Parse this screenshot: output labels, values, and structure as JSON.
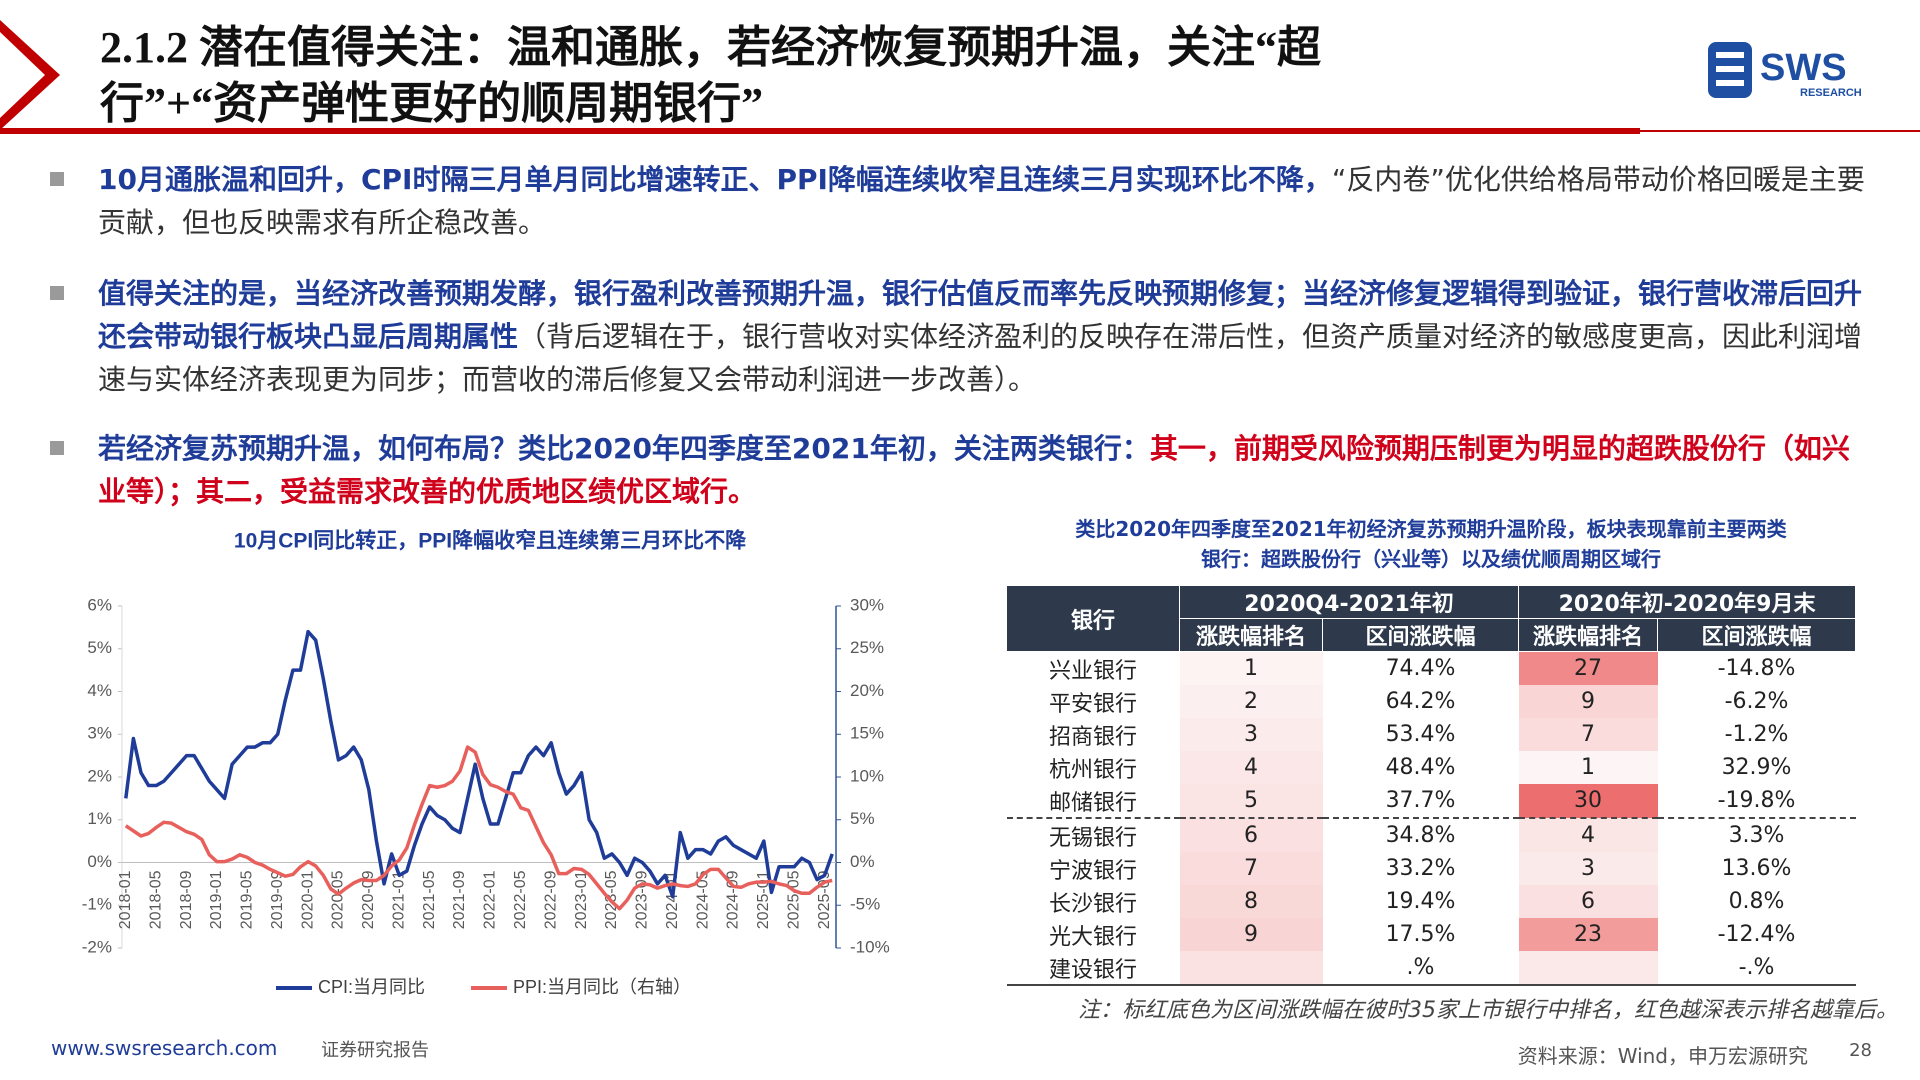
{
  "header": {
    "title_lines": [
      "2.1.2 潜在值得关注：温和通胀，若经济恢复预期升温，关注“超",
      "行”+“资产弹性更好的顺周期银行”"
    ],
    "logo": "SWS",
    "logo_sub": "RESEARCH"
  },
  "bullets": [
    [
      "10月通胀温和回升，CPI时隔三月单月同比增速转正、PPI降幅连续收窄且连续三月实现环比不降，",
      "“反内卷”优化供给格局带动价格回暖是主要贡献，但也反映需求有所企稳改善。"
    ],
    [
      "值得关注的是，当经济改善预期发酵，银行盈利改善预期升温，银行估值反而率先反映预期修复；当经济修复逻辑得到验证，银行营收滞后回升还会带动银行板块凸显后周期属性",
      "（背后逻辑在于，银行营收对实体经济盈利的反映存在滞后性，但资产质量对经济的敏感度更高，因此利润增速与实体经济表现更为同步；而营收的滞后修复又会带动利润进一步改善）。"
    ],
    [
      "若经济复苏预期升温，如何布局？类比2020年四季度至2021年初，关注两类银行：",
      "其一，前期受风险预期压制更为明显的超跌股份行（如兴业等）；其二，受益需求改善的优质地区绩优区域行。"
    ]
  ],
  "chart_data": {
    "type": "line",
    "title": "10月CPI同比转正，PPI降幅收窄且连续第三月环比不降",
    "categories": [
      "2018-01",
      null,
      null,
      null,
      "2018-05",
      null,
      null,
      null,
      "2018-09",
      null,
      null,
      null,
      "2019-01",
      null,
      null,
      null,
      "2019-05",
      null,
      null,
      null,
      "2019-09",
      null,
      null,
      null,
      "2020-01",
      null,
      null,
      null,
      "2020-05",
      null,
      null,
      null,
      "2020-09",
      null,
      null,
      null,
      "2021-01",
      null,
      null,
      null,
      "2021-05",
      null,
      null,
      null,
      "2021-09",
      null,
      null,
      null,
      "2022-01",
      null,
      null,
      null,
      "2022-05",
      null,
      null,
      null,
      "2022-09",
      null,
      null,
      null,
      "2023-01",
      null,
      null,
      null,
      "2023-05",
      null,
      null,
      null,
      "2023-09",
      null,
      null,
      null,
      "2024-01",
      null,
      null,
      null,
      "2024-05",
      null,
      null,
      null,
      "2024-09",
      null,
      null,
      null,
      "2025-01",
      null,
      null,
      null,
      "2025-05",
      null,
      null,
      null,
      "2025-09",
      null
    ],
    "series": [
      {
        "name": "CPI:当月同比",
        "color": "#1f3c99",
        "values": [
          1.5,
          2.9,
          2.1,
          1.8,
          1.8,
          1.9,
          2.1,
          2.3,
          2.5,
          2.5,
          2.2,
          1.9,
          1.7,
          1.5,
          2.3,
          2.5,
          2.7,
          2.7,
          2.8,
          2.8,
          3.0,
          3.8,
          4.5,
          4.5,
          5.4,
          5.2,
          4.3,
          3.3,
          2.4,
          2.5,
          2.7,
          2.4,
          1.7,
          0.5,
          -0.5,
          0.2,
          -0.3,
          -0.2,
          0.4,
          0.9,
          1.3,
          1.1,
          1.0,
          0.8,
          0.7,
          1.5,
          2.3,
          1.5,
          0.9,
          0.9,
          1.5,
          2.1,
          2.1,
          2.5,
          2.7,
          2.5,
          2.8,
          2.1,
          1.6,
          1.8,
          2.1,
          1.0,
          0.7,
          0.1,
          0.2,
          0.0,
          -0.3,
          0.1,
          0.0,
          -0.2,
          -0.5,
          -0.3,
          -0.8,
          0.7,
          0.1,
          0.3,
          0.3,
          0.2,
          0.5,
          0.6,
          0.4,
          0.3,
          0.2,
          0.1,
          0.5,
          -0.7,
          -0.1,
          -0.1,
          -0.1,
          0.1,
          0.0,
          -0.4,
          -0.3,
          0.2
        ]
      },
      {
        "name": "PPI:当月同比（右轴）",
        "color": "#e8605c",
        "axis": "y2",
        "values": [
          4.3,
          3.7,
          3.1,
          3.4,
          4.1,
          4.7,
          4.6,
          4.1,
          3.6,
          3.3,
          2.7,
          0.9,
          0.1,
          0.1,
          0.4,
          0.9,
          0.6,
          0.0,
          -0.3,
          -0.8,
          -1.2,
          -1.6,
          -1.4,
          -0.5,
          0.1,
          -0.4,
          -1.5,
          -3.1,
          -3.7,
          -3.0,
          -2.4,
          -2.0,
          -2.1,
          -2.1,
          -1.5,
          -0.4,
          0.3,
          1.7,
          4.4,
          6.8,
          9.0,
          8.8,
          9.0,
          9.5,
          10.7,
          13.5,
          12.9,
          10.3,
          9.1,
          8.8,
          8.3,
          8.0,
          6.4,
          6.1,
          4.2,
          2.3,
          0.9,
          -1.3,
          -1.3,
          -0.7,
          -0.8,
          -1.4,
          -2.5,
          -3.6,
          -4.6,
          -5.4,
          -4.4,
          -3.0,
          -2.5,
          -2.6,
          -3.0,
          -2.7,
          -2.5,
          -2.7,
          -2.8,
          -2.5,
          -1.4,
          -0.8,
          -0.8,
          -1.8,
          -2.8,
          -2.9,
          -2.5,
          -2.3,
          -2.3,
          -2.2,
          -2.5,
          -2.7,
          -3.3,
          -3.6,
          -3.6,
          -2.9,
          -2.3,
          -2.1
        ]
      }
    ],
    "ylim": [
      -2,
      6
    ],
    "yticks": [
      {
        "value": -2,
        "label": "-2%"
      },
      {
        "value": -1,
        "label": "-1%"
      },
      {
        "value": 0,
        "label": "0%"
      },
      {
        "value": 1,
        "label": "1%"
      },
      {
        "value": 2,
        "label": "2%"
      },
      {
        "value": 3,
        "label": "3%"
      },
      {
        "value": 4,
        "label": "4%"
      },
      {
        "value": 5,
        "label": "5%"
      },
      {
        "value": 6,
        "label": "6%"
      }
    ],
    "y2lim": [
      -10,
      30
    ],
    "y2ticks": [
      {
        "value": -10,
        "label": "-10%"
      },
      {
        "value": -5,
        "label": "-5%"
      },
      {
        "value": 0,
        "label": "0%"
      },
      {
        "value": 5,
        "label": "5%"
      },
      {
        "value": 10,
        "label": "10%"
      },
      {
        "value": 15,
        "label": "15%"
      },
      {
        "value": 20,
        "label": "20%"
      },
      {
        "value": 25,
        "label": "25%"
      },
      {
        "value": 30,
        "label": "30%"
      }
    ],
    "grid": false,
    "legend": "bottom"
  },
  "table": {
    "title_lines": [
      "类比2020年四季度至2021年初经济复苏预期升温阶段，板块表现靠前主要两类",
      "银行：超跌股份行（兴业等）以及绩优顺周期区域行"
    ],
    "header": {
      "bank": "银行",
      "period1": "2020Q4-2021年初",
      "period2": "2020年初-2020年9月末",
      "rank": "涨跌幅排名",
      "change": "区间涨跌幅"
    },
    "rows": [
      {
        "bank": "兴业银行",
        "rank1": "1",
        "chg1": "74.4%",
        "rank2": "27",
        "chg2": "-14.8%",
        "shade1": "#fdf3f3",
        "shade2": "#f08a8a"
      },
      {
        "bank": "平安银行",
        "rank1": "2",
        "chg1": "64.2%",
        "rank2": "9",
        "chg2": "-6.2%",
        "shade1": "#fcefef",
        "shade2": "#f9d5d5"
      },
      {
        "bank": "招商银行",
        "rank1": "3",
        "chg1": "53.4%",
        "rank2": "7",
        "chg2": "-1.2%",
        "shade1": "#fcebeb",
        "shade2": "#fadcdc"
      },
      {
        "bank": "杭州银行",
        "rank1": "4",
        "chg1": "48.4%",
        "rank2": "1",
        "chg2": "32.9%",
        "shade1": "#fbe7e7",
        "shade2": "#fdf5f5"
      },
      {
        "bank": "邮储银行",
        "rank1": "5",
        "chg1": "37.7%",
        "rank2": "30",
        "chg2": "-19.8%",
        "shade1": "#fbe4e4",
        "shade2": "#ec6e6e"
      },
      {
        "bank": "无锡银行",
        "rank1": "6",
        "chg1": "34.8%",
        "rank2": "4",
        "chg2": "3.3%",
        "shade1": "#fae0e0",
        "shade2": "#fbe6e6"
      },
      {
        "bank": "宁波银行",
        "rank1": "7",
        "chg1": "33.2%",
        "rank2": "3",
        "chg2": "13.6%",
        "shade1": "#fadcdc",
        "shade2": "#fbeaea"
      },
      {
        "bank": "长沙银行",
        "rank1": "8",
        "chg1": "19.4%",
        "rank2": "6",
        "chg2": "0.8%",
        "shade1": "#f9d8d8",
        "shade2": "#fae0e0"
      },
      {
        "bank": "光大银行",
        "rank1": "9",
        "chg1": "17.5%",
        "rank2": "23",
        "chg2": "-12.4%",
        "shade1": "#f9d4d4",
        "shade2": "#f29c9c"
      },
      {
        "bank": "建设银行",
        "rank1": "",
        "chg1": ".%",
        "rank2": "",
        "chg2": "-.%",
        "shade1": "#fae2e2",
        "shade2": "#fbe9e9"
      }
    ],
    "note": "注：标红底色为区间涨跌幅在彼时35家上市银行中排名，红色越深表示排名越靠后。"
  },
  "footer": {
    "url": "www.swsresearch.com",
    "type": "证券研究报告",
    "source": "资料来源：Wind，申万宏源研究",
    "page": "28"
  }
}
